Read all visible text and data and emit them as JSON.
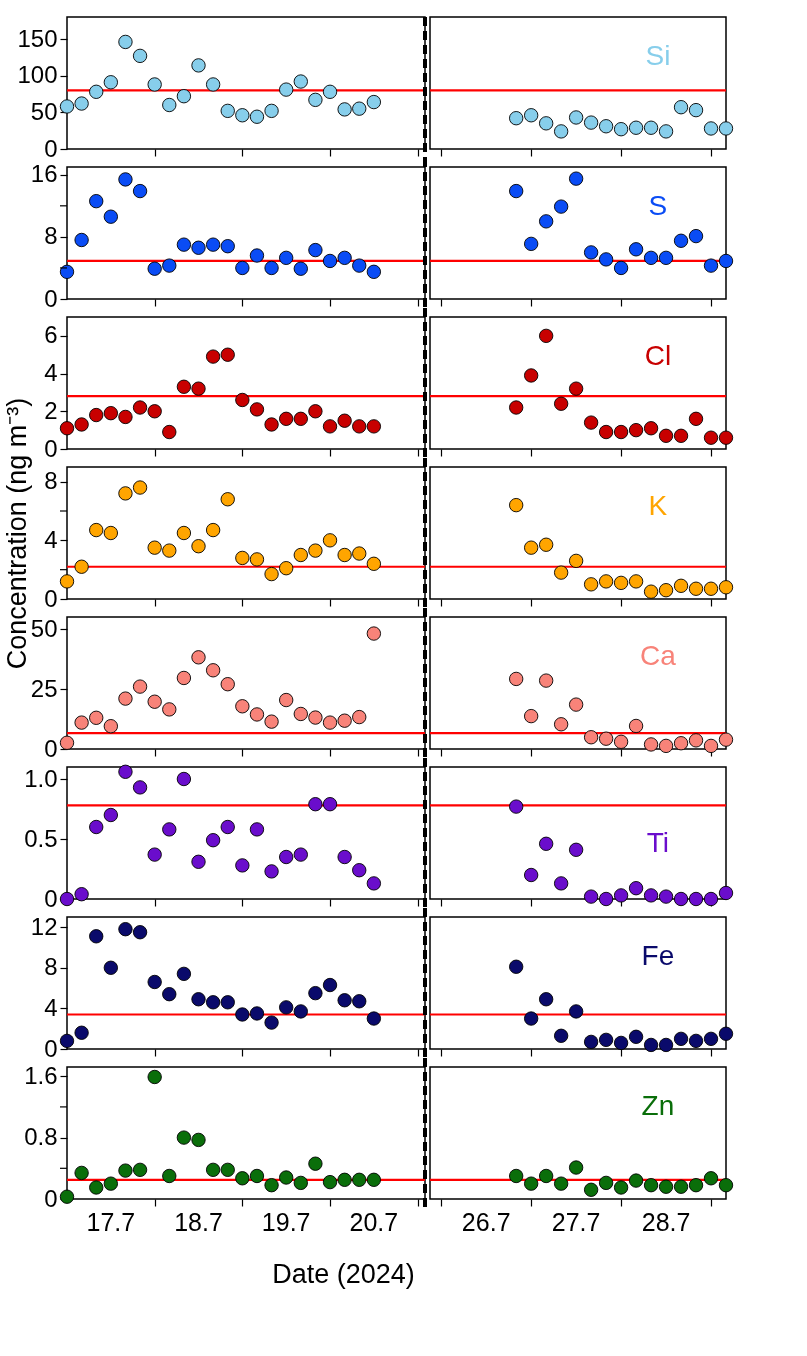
{
  "chart_data": [
    {
      "type": "scatter",
      "x": [
        "2024-07-17T00:00",
        "2024-07-17T04:00",
        "2024-07-17T08:00",
        "2024-07-17T12:00",
        "2024-07-17T16:00",
        "2024-07-17T20:00",
        "2024-07-18T00:00",
        "2024-07-18T04:00",
        "2024-07-18T08:00",
        "2024-07-18T12:00",
        "2024-07-18T16:00",
        "2024-07-18T20:00",
        "2024-07-19T00:00",
        "2024-07-19T04:00",
        "2024-07-19T08:00",
        "2024-07-19T12:00",
        "2024-07-19T16:00",
        "2024-07-19T20:00",
        "2024-07-20T00:00",
        "2024-07-20T04:00",
        "2024-07-20T08:00",
        "2024-07-20T12:00"
      ],
      "xlim": [
        "2024-07-17T00:00",
        "2024-07-21T02:00"
      ],
      "xticks": [
        {
          "value": "2024-07-18T00:00",
          "label": null
        },
        {
          "value": "2024-07-19T00:00",
          "label": null
        },
        {
          "value": "2024-07-20T00:00",
          "label": null
        },
        {
          "value": "2024-07-21T00:00",
          "label": null
        }
      ],
      "ylim": [
        0,
        180
      ],
      "yticks": [
        0,
        50,
        100,
        150
      ],
      "marker": "circle",
      "tick_labels": "y",
      "ref_lines": [
        {
          "axis": "y",
          "value": 80,
          "color": "#ff0000"
        }
      ],
      "series": [
        {
          "color": "#87ceeb",
          "values": [
            58,
            62,
            78,
            91,
            146,
            127,
            88,
            60,
            72,
            114,
            88,
            52,
            46,
            44,
            52,
            81,
            92,
            67,
            78,
            54,
            55,
            64
          ]
        }
      ]
    },
    {
      "type": "scatter",
      "x": [
        "2024-07-26T20:00",
        "2024-07-27T00:00",
        "2024-07-27T04:00",
        "2024-07-27T08:00",
        "2024-07-27T12:00",
        "2024-07-27T16:00",
        "2024-07-27T20:00",
        "2024-07-28T00:00",
        "2024-07-28T04:00",
        "2024-07-28T08:00",
        "2024-07-28T12:00",
        "2024-07-28T16:00",
        "2024-07-28T20:00",
        "2024-07-29T00:00",
        "2024-07-29T04:00"
      ],
      "xlim": [
        "2024-07-25T21:00",
        "2024-07-29T04:00"
      ],
      "xticks": [
        {
          "value": "2024-07-26T00:00",
          "label": null
        },
        {
          "value": "2024-07-27T00:00",
          "label": null
        },
        {
          "value": "2024-07-28T00:00",
          "label": null
        },
        {
          "value": "2024-07-29T00:00",
          "label": null
        }
      ],
      "ylim": [
        0,
        180
      ],
      "marker": "circle",
      "tick_labels": false,
      "ref_lines": [
        {
          "axis": "y",
          "value": 80,
          "color": "#ff0000"
        }
      ],
      "series": [
        {
          "name": "Si",
          "color": "#87ceeb",
          "values": [
            42,
            46,
            35,
            24,
            43,
            36,
            31,
            27,
            29,
            29,
            24,
            57,
            53,
            28,
            28
          ]
        }
      ]
    },
    {
      "type": "scatter",
      "x": [
        "2024-07-17T00:00",
        "2024-07-17T04:00",
        "2024-07-17T08:00",
        "2024-07-17T12:00",
        "2024-07-17T16:00",
        "2024-07-17T20:00",
        "2024-07-18T00:00",
        "2024-07-18T04:00",
        "2024-07-18T08:00",
        "2024-07-18T12:00",
        "2024-07-18T16:00",
        "2024-07-18T20:00",
        "2024-07-19T00:00",
        "2024-07-19T04:00",
        "2024-07-19T08:00",
        "2024-07-19T12:00",
        "2024-07-19T16:00",
        "2024-07-19T20:00",
        "2024-07-20T00:00",
        "2024-07-20T04:00",
        "2024-07-20T08:00",
        "2024-07-20T12:00"
      ],
      "xlim": [
        "2024-07-17T00:00",
        "2024-07-21T02:00"
      ],
      "xticks": [
        {
          "value": "2024-07-18T00:00",
          "label": null
        },
        {
          "value": "2024-07-19T00:00",
          "label": null
        },
        {
          "value": "2024-07-20T00:00",
          "label": null
        },
        {
          "value": "2024-07-21T00:00",
          "label": null
        }
      ],
      "ylim": [
        0,
        17
      ],
      "yticks": [
        0,
        {
          "value": 4,
          "label": null
        },
        8,
        {
          "value": 12,
          "label": null
        },
        16
      ],
      "marker": "circle",
      "tick_labels": "y",
      "ref_lines": [
        {
          "axis": "y",
          "value": 4.9,
          "color": "#ff0000"
        }
      ],
      "series": [
        {
          "color": "#0a4cf5",
          "values": [
            3.5,
            7.6,
            12.6,
            10.6,
            15.4,
            13.9,
            3.9,
            4.3,
            7.0,
            6.6,
            7.0,
            6.8,
            4.0,
            5.6,
            4.0,
            5.3,
            3.9,
            6.3,
            4.9,
            5.3,
            4.3,
            3.5
          ]
        }
      ]
    },
    {
      "type": "scatter",
      "x": [
        "2024-07-26T20:00",
        "2024-07-27T00:00",
        "2024-07-27T04:00",
        "2024-07-27T08:00",
        "2024-07-27T12:00",
        "2024-07-27T16:00",
        "2024-07-27T20:00",
        "2024-07-28T00:00",
        "2024-07-28T04:00",
        "2024-07-28T08:00",
        "2024-07-28T12:00",
        "2024-07-28T16:00",
        "2024-07-28T20:00",
        "2024-07-29T00:00",
        "2024-07-29T04:00"
      ],
      "xlim": [
        "2024-07-25T21:00",
        "2024-07-29T04:00"
      ],
      "xticks": [
        {
          "value": "2024-07-26T00:00",
          "label": null
        },
        {
          "value": "2024-07-27T00:00",
          "label": null
        },
        {
          "value": "2024-07-28T00:00",
          "label": null
        },
        {
          "value": "2024-07-29T00:00",
          "label": null
        }
      ],
      "ylim": [
        0,
        17
      ],
      "marker": "circle",
      "tick_labels": false,
      "ref_lines": [
        {
          "axis": "y",
          "value": 4.9,
          "color": "#ff0000"
        }
      ],
      "series": [
        {
          "name": "S",
          "color": "#0a4cf5",
          "values": [
            13.9,
            7.1,
            10.0,
            11.9,
            15.5,
            6.0,
            5.1,
            4.0,
            6.4,
            5.3,
            5.3,
            7.5,
            8.1,
            4.3,
            4.9
          ]
        }
      ]
    },
    {
      "type": "scatter",
      "x": [
        "2024-07-17T00:00",
        "2024-07-17T04:00",
        "2024-07-17T08:00",
        "2024-07-17T12:00",
        "2024-07-17T16:00",
        "2024-07-17T20:00",
        "2024-07-18T00:00",
        "2024-07-18T04:00",
        "2024-07-18T08:00",
        "2024-07-18T12:00",
        "2024-07-18T16:00",
        "2024-07-18T20:00",
        "2024-07-19T00:00",
        "2024-07-19T04:00",
        "2024-07-19T08:00",
        "2024-07-19T12:00",
        "2024-07-19T16:00",
        "2024-07-19T20:00",
        "2024-07-20T00:00",
        "2024-07-20T04:00",
        "2024-07-20T08:00",
        "2024-07-20T12:00"
      ],
      "xlim": [
        "2024-07-17T00:00",
        "2024-07-21T02:00"
      ],
      "xticks": [
        {
          "value": "2024-07-18T00:00",
          "label": null
        },
        {
          "value": "2024-07-19T00:00",
          "label": null
        },
        {
          "value": "2024-07-20T00:00",
          "label": null
        },
        {
          "value": "2024-07-21T00:00",
          "label": null
        }
      ],
      "ylim": [
        0,
        7
      ],
      "yticks": [
        0,
        2,
        4,
        6
      ],
      "marker": "circle",
      "tick_labels": "y",
      "ref_lines": [
        {
          "axis": "y",
          "value": 2.8,
          "color": "#ff0000"
        }
      ],
      "series": [
        {
          "color": "#c80000",
          "values": [
            1.1,
            1.3,
            1.8,
            1.9,
            1.7,
            2.2,
            2.0,
            0.9,
            3.3,
            3.2,
            4.9,
            5.0,
            2.6,
            2.1,
            1.3,
            1.6,
            1.6,
            2.0,
            1.2,
            1.5,
            1.2,
            1.2
          ]
        }
      ]
    },
    {
      "type": "scatter",
      "x": [
        "2024-07-26T20:00",
        "2024-07-27T00:00",
        "2024-07-27T04:00",
        "2024-07-27T08:00",
        "2024-07-27T12:00",
        "2024-07-27T16:00",
        "2024-07-27T20:00",
        "2024-07-28T00:00",
        "2024-07-28T04:00",
        "2024-07-28T08:00",
        "2024-07-28T12:00",
        "2024-07-28T16:00",
        "2024-07-28T20:00",
        "2024-07-29T00:00",
        "2024-07-29T04:00"
      ],
      "xlim": [
        "2024-07-25T21:00",
        "2024-07-29T04:00"
      ],
      "xticks": [
        {
          "value": "2024-07-26T00:00",
          "label": null
        },
        {
          "value": "2024-07-27T00:00",
          "label": null
        },
        {
          "value": "2024-07-28T00:00",
          "label": null
        },
        {
          "value": "2024-07-29T00:00",
          "label": null
        }
      ],
      "ylim": [
        0,
        7
      ],
      "marker": "circle",
      "tick_labels": false,
      "ref_lines": [
        {
          "axis": "y",
          "value": 2.8,
          "color": "#ff0000"
        }
      ],
      "series": [
        {
          "name": "Cl",
          "color": "#c80000",
          "values": [
            2.2,
            3.9,
            6.0,
            2.4,
            3.2,
            1.4,
            0.9,
            0.9,
            1.0,
            1.1,
            0.7,
            0.7,
            1.6,
            0.6,
            0.6
          ]
        }
      ]
    },
    {
      "type": "scatter",
      "x": [
        "2024-07-17T00:00",
        "2024-07-17T04:00",
        "2024-07-17T08:00",
        "2024-07-17T12:00",
        "2024-07-17T16:00",
        "2024-07-17T20:00",
        "2024-07-18T00:00",
        "2024-07-18T04:00",
        "2024-07-18T08:00",
        "2024-07-18T12:00",
        "2024-07-18T16:00",
        "2024-07-18T20:00",
        "2024-07-19T00:00",
        "2024-07-19T04:00",
        "2024-07-19T08:00",
        "2024-07-19T12:00",
        "2024-07-19T16:00",
        "2024-07-19T20:00",
        "2024-07-20T00:00",
        "2024-07-20T04:00",
        "2024-07-20T08:00",
        "2024-07-20T12:00"
      ],
      "xlim": [
        "2024-07-17T00:00",
        "2024-07-21T02:00"
      ],
      "xticks": [
        {
          "value": "2024-07-18T00:00",
          "label": null
        },
        {
          "value": "2024-07-19T00:00",
          "label": null
        },
        {
          "value": "2024-07-20T00:00",
          "label": null
        },
        {
          "value": "2024-07-21T00:00",
          "label": null
        }
      ],
      "ylim": [
        0,
        9
      ],
      "yticks": [
        0,
        {
          "value": 2,
          "label": null
        },
        4,
        {
          "value": 6,
          "label": null
        },
        8
      ],
      "marker": "circle",
      "tick_labels": "y",
      "ylabel": "Concentration (ng m⁻³)",
      "ref_lines": [
        {
          "axis": "y",
          "value": 2.2,
          "color": "#ff0000"
        }
      ],
      "series": [
        {
          "color": "#ffa500",
          "values": [
            1.2,
            2.2,
            4.7,
            4.5,
            7.2,
            7.6,
            3.5,
            3.3,
            4.5,
            3.6,
            4.7,
            6.8,
            2.8,
            2.7,
            1.7,
            2.1,
            3.0,
            3.3,
            4.0,
            3.0,
            3.1,
            2.4
          ]
        }
      ]
    },
    {
      "type": "scatter",
      "x": [
        "2024-07-26T20:00",
        "2024-07-27T00:00",
        "2024-07-27T04:00",
        "2024-07-27T08:00",
        "2024-07-27T12:00",
        "2024-07-27T16:00",
        "2024-07-27T20:00",
        "2024-07-28T00:00",
        "2024-07-28T04:00",
        "2024-07-28T08:00",
        "2024-07-28T12:00",
        "2024-07-28T16:00",
        "2024-07-28T20:00",
        "2024-07-29T00:00",
        "2024-07-29T04:00"
      ],
      "xlim": [
        "2024-07-25T21:00",
        "2024-07-29T04:00"
      ],
      "xticks": [
        {
          "value": "2024-07-26T00:00",
          "label": null
        },
        {
          "value": "2024-07-27T00:00",
          "label": null
        },
        {
          "value": "2024-07-28T00:00",
          "label": null
        },
        {
          "value": "2024-07-29T00:00",
          "label": null
        }
      ],
      "ylim": [
        0,
        9
      ],
      "marker": "circle",
      "tick_labels": false,
      "ref_lines": [
        {
          "axis": "y",
          "value": 2.2,
          "color": "#ff0000"
        }
      ],
      "series": [
        {
          "name": "K",
          "color": "#ffa500",
          "values": [
            6.4,
            3.5,
            3.7,
            1.8,
            2.6,
            1.0,
            1.2,
            1.1,
            1.2,
            0.5,
            0.6,
            0.9,
            0.7,
            0.7,
            0.8
          ]
        }
      ]
    },
    {
      "type": "scatter",
      "x": [
        "2024-07-17T00:00",
        "2024-07-17T04:00",
        "2024-07-17T08:00",
        "2024-07-17T12:00",
        "2024-07-17T16:00",
        "2024-07-17T20:00",
        "2024-07-18T00:00",
        "2024-07-18T04:00",
        "2024-07-18T08:00",
        "2024-07-18T12:00",
        "2024-07-18T16:00",
        "2024-07-18T20:00",
        "2024-07-19T00:00",
        "2024-07-19T04:00",
        "2024-07-19T08:00",
        "2024-07-19T12:00",
        "2024-07-19T16:00",
        "2024-07-19T20:00",
        "2024-07-20T00:00",
        "2024-07-20T04:00",
        "2024-07-20T08:00",
        "2024-07-20T12:00"
      ],
      "xlim": [
        "2024-07-17T00:00",
        "2024-07-21T02:00"
      ],
      "xticks": [
        {
          "value": "2024-07-18T00:00",
          "label": null
        },
        {
          "value": "2024-07-19T00:00",
          "label": null
        },
        {
          "value": "2024-07-20T00:00",
          "label": null
        },
        {
          "value": "2024-07-21T00:00",
          "label": null
        }
      ],
      "ylim": [
        0,
        55
      ],
      "yticks": [
        0,
        25,
        50
      ],
      "marker": "circle",
      "tick_labels": "y",
      "ref_lines": [
        {
          "axis": "y",
          "value": 6.6,
          "color": "#ff0000"
        }
      ],
      "series": [
        {
          "color": "#f88379",
          "values": [
            2.6,
            11,
            13,
            9.5,
            21,
            26,
            19.7,
            16.5,
            29.6,
            38.2,
            32.8,
            27,
            17.8,
            14.4,
            11.4,
            20.4,
            14.6,
            13.1,
            11,
            11.8,
            13.3,
            48.1
          ]
        }
      ]
    },
    {
      "type": "scatter",
      "x": [
        "2024-07-26T20:00",
        "2024-07-27T00:00",
        "2024-07-27T04:00",
        "2024-07-27T08:00",
        "2024-07-27T12:00",
        "2024-07-27T16:00",
        "2024-07-27T20:00",
        "2024-07-28T00:00",
        "2024-07-28T04:00",
        "2024-07-28T08:00",
        "2024-07-28T12:00",
        "2024-07-28T16:00",
        "2024-07-28T20:00",
        "2024-07-29T00:00",
        "2024-07-29T04:00"
      ],
      "xlim": [
        "2024-07-25T21:00",
        "2024-07-29T04:00"
      ],
      "xticks": [
        {
          "value": "2024-07-26T00:00",
          "label": null
        },
        {
          "value": "2024-07-27T00:00",
          "label": null
        },
        {
          "value": "2024-07-28T00:00",
          "label": null
        },
        {
          "value": "2024-07-29T00:00",
          "label": null
        }
      ],
      "ylim": [
        0,
        55
      ],
      "marker": "circle",
      "tick_labels": false,
      "ref_lines": [
        {
          "axis": "y",
          "value": 6.6,
          "color": "#ff0000"
        }
      ],
      "series": [
        {
          "name": "Ca",
          "color": "#f88379",
          "values": [
            29.2,
            13.7,
            28.5,
            10.3,
            18.5,
            4.9,
            4.3,
            3.0,
            9.6,
            1.9,
            1.3,
            2.4,
            3.6,
            1.3,
            3.9
          ]
        }
      ]
    },
    {
      "type": "scatter",
      "x": [
        "2024-07-17T00:00",
        "2024-07-17T04:00",
        "2024-07-17T08:00",
        "2024-07-17T12:00",
        "2024-07-17T16:00",
        "2024-07-17T20:00",
        "2024-07-18T00:00",
        "2024-07-18T04:00",
        "2024-07-18T08:00",
        "2024-07-18T12:00",
        "2024-07-18T16:00",
        "2024-07-18T20:00",
        "2024-07-19T00:00",
        "2024-07-19T04:00",
        "2024-07-19T08:00",
        "2024-07-19T12:00",
        "2024-07-19T16:00",
        "2024-07-19T20:00",
        "2024-07-20T00:00",
        "2024-07-20T04:00",
        "2024-07-20T08:00",
        "2024-07-20T12:00"
      ],
      "xlim": [
        "2024-07-17T00:00",
        "2024-07-21T02:00"
      ],
      "xticks": [
        {
          "value": "2024-07-18T00:00",
          "label": null
        },
        {
          "value": "2024-07-19T00:00",
          "label": null
        },
        {
          "value": "2024-07-20T00:00",
          "label": null
        },
        {
          "value": "2024-07-21T00:00",
          "label": null
        }
      ],
      "ylim": [
        0,
        1.1
      ],
      "yticks": [
        {
          "value": 0,
          "label": "0"
        },
        {
          "value": 0.5,
          "label": "0.5"
        },
        {
          "value": 1,
          "label": "1.0"
        }
      ],
      "marker": "circle",
      "tick_labels": "y",
      "ref_lines": [
        {
          "axis": "y",
          "value": 0.78,
          "color": "#ff0000"
        }
      ],
      "series": [
        {
          "color": "#6a0dcc",
          "values": [
            0,
            0.04,
            0.6,
            0.7,
            1.06,
            0.93,
            0.37,
            0.58,
            1.0,
            0.31,
            0.49,
            0.6,
            0.28,
            0.58,
            0.23,
            0.35,
            0.37,
            0.79,
            0.79,
            0.35,
            0.24,
            0.13
          ]
        }
      ]
    },
    {
      "type": "scatter",
      "x": [
        "2024-07-26T20:00",
        "2024-07-27T00:00",
        "2024-07-27T04:00",
        "2024-07-27T08:00",
        "2024-07-27T12:00",
        "2024-07-27T16:00",
        "2024-07-27T20:00",
        "2024-07-28T00:00",
        "2024-07-28T04:00",
        "2024-07-28T08:00",
        "2024-07-28T12:00",
        "2024-07-28T16:00",
        "2024-07-28T20:00",
        "2024-07-29T00:00",
        "2024-07-29T04:00"
      ],
      "xlim": [
        "2024-07-25T21:00",
        "2024-07-29T04:00"
      ],
      "xticks": [
        {
          "value": "2024-07-26T00:00",
          "label": null
        },
        {
          "value": "2024-07-27T00:00",
          "label": null
        },
        {
          "value": "2024-07-28T00:00",
          "label": null
        },
        {
          "value": "2024-07-29T00:00",
          "label": null
        }
      ],
      "ylim": [
        0,
        1.1
      ],
      "marker": "circle",
      "tick_labels": false,
      "ref_lines": [
        {
          "axis": "y",
          "value": 0.78,
          "color": "#ff0000"
        }
      ],
      "series": [
        {
          "name": "Ti",
          "color": "#6a0dcc",
          "values": [
            0.77,
            0.2,
            0.46,
            0.13,
            0.41,
            0.02,
            0,
            0.03,
            0.09,
            0.03,
            0.02,
            0,
            0,
            0,
            0.05
          ]
        }
      ]
    },
    {
      "type": "scatter",
      "x": [
        "2024-07-17T00:00",
        "2024-07-17T04:00",
        "2024-07-17T08:00",
        "2024-07-17T12:00",
        "2024-07-17T16:00",
        "2024-07-17T20:00",
        "2024-07-18T00:00",
        "2024-07-18T04:00",
        "2024-07-18T08:00",
        "2024-07-18T12:00",
        "2024-07-18T16:00",
        "2024-07-18T20:00",
        "2024-07-19T00:00",
        "2024-07-19T04:00",
        "2024-07-19T08:00",
        "2024-07-19T12:00",
        "2024-07-19T16:00",
        "2024-07-19T20:00",
        "2024-07-20T00:00",
        "2024-07-20T04:00",
        "2024-07-20T08:00",
        "2024-07-20T12:00"
      ],
      "xlim": [
        "2024-07-17T00:00",
        "2024-07-21T02:00"
      ],
      "xticks": [
        {
          "value": "2024-07-18T00:00",
          "label": null
        },
        {
          "value": "2024-07-19T00:00",
          "label": null
        },
        {
          "value": "2024-07-20T00:00",
          "label": null
        },
        {
          "value": "2024-07-21T00:00",
          "label": null
        }
      ],
      "ylim": [
        0,
        13
      ],
      "yticks": [
        0,
        4,
        8,
        12
      ],
      "marker": "circle",
      "tick_labels": "y",
      "ref_lines": [
        {
          "axis": "y",
          "value": 3.4,
          "color": "#ff0000"
        }
      ],
      "series": [
        {
          "color": "#0a0a6b",
          "values": [
            0.8,
            1.6,
            11.1,
            8.0,
            11.8,
            11.5,
            6.6,
            5.4,
            7.4,
            4.9,
            4.6,
            4.6,
            3.4,
            3.5,
            2.6,
            4.1,
            3.7,
            5.5,
            6.3,
            4.8,
            4.7,
            3.0
          ]
        }
      ]
    },
    {
      "type": "scatter",
      "x": [
        "2024-07-26T20:00",
        "2024-07-27T00:00",
        "2024-07-27T04:00",
        "2024-07-27T08:00",
        "2024-07-27T12:00",
        "2024-07-27T16:00",
        "2024-07-27T20:00",
        "2024-07-28T00:00",
        "2024-07-28T04:00",
        "2024-07-28T08:00",
        "2024-07-28T12:00",
        "2024-07-28T16:00",
        "2024-07-28T20:00",
        "2024-07-29T00:00",
        "2024-07-29T04:00"
      ],
      "xlim": [
        "2024-07-25T21:00",
        "2024-07-29T04:00"
      ],
      "xticks": [
        {
          "value": "2024-07-26T00:00",
          "label": null
        },
        {
          "value": "2024-07-27T00:00",
          "label": null
        },
        {
          "value": "2024-07-28T00:00",
          "label": null
        },
        {
          "value": "2024-07-29T00:00",
          "label": null
        }
      ],
      "ylim": [
        0,
        13
      ],
      "marker": "circle",
      "tick_labels": false,
      "ref_lines": [
        {
          "axis": "y",
          "value": 3.4,
          "color": "#ff0000"
        }
      ],
      "series": [
        {
          "name": "Fe",
          "color": "#0a0a6b",
          "values": [
            8.1,
            3.0,
            4.9,
            1.3,
            3.7,
            0.7,
            0.9,
            0.6,
            1.2,
            0.4,
            0.4,
            1.0,
            0.8,
            1.0,
            1.5
          ]
        }
      ]
    },
    {
      "type": "scatter",
      "xlabel": "Date (2024)",
      "x": [
        "2024-07-17T00:00",
        "2024-07-17T04:00",
        "2024-07-17T08:00",
        "2024-07-17T12:00",
        "2024-07-17T16:00",
        "2024-07-17T20:00",
        "2024-07-18T00:00",
        "2024-07-18T04:00",
        "2024-07-18T08:00",
        "2024-07-18T12:00",
        "2024-07-18T16:00",
        "2024-07-18T20:00",
        "2024-07-19T00:00",
        "2024-07-19T04:00",
        "2024-07-19T08:00",
        "2024-07-19T12:00",
        "2024-07-19T16:00",
        "2024-07-19T20:00",
        "2024-07-20T00:00",
        "2024-07-20T04:00",
        "2024-07-20T08:00",
        "2024-07-20T12:00"
      ],
      "xlim": [
        "2024-07-17T00:00",
        "2024-07-21T02:00"
      ],
      "xticks": [
        {
          "value": "2024-07-17T12:00",
          "label": "17.7"
        },
        {
          "value": "2024-07-18T00:00",
          "label": null
        },
        {
          "value": "2024-07-18T12:00",
          "label": "18.7"
        },
        {
          "value": "2024-07-19T00:00",
          "label": null
        },
        {
          "value": "2024-07-19T12:00",
          "label": "19.7"
        },
        {
          "value": "2024-07-20T00:00",
          "label": null
        },
        {
          "value": "2024-07-20T12:00",
          "label": "20.7"
        },
        {
          "value": "2024-07-21T00:00",
          "label": null
        }
      ],
      "ylim": [
        0,
        1.72
      ],
      "yticks": [
        0,
        {
          "value": 0.4,
          "label": null
        },
        0.8,
        {
          "value": 1.2,
          "label": null
        },
        1.6
      ],
      "marker": "circle",
      "ref_lines": [
        {
          "axis": "y",
          "value": 0.25,
          "color": "#ff0000"
        }
      ],
      "series": [
        {
          "color": "#0a6e0a",
          "values": [
            0.03,
            0.34,
            0.15,
            0.2,
            0.37,
            0.38,
            1.59,
            0.3,
            0.8,
            0.77,
            0.38,
            0.38,
            0.27,
            0.3,
            0.18,
            0.28,
            0.21,
            0.46,
            0.22,
            0.25,
            0.25,
            0.25
          ]
        }
      ]
    },
    {
      "type": "scatter",
      "x": [
        "2024-07-26T20:00",
        "2024-07-27T00:00",
        "2024-07-27T04:00",
        "2024-07-27T08:00",
        "2024-07-27T12:00",
        "2024-07-27T16:00",
        "2024-07-27T20:00",
        "2024-07-28T00:00",
        "2024-07-28T04:00",
        "2024-07-28T08:00",
        "2024-07-28T12:00",
        "2024-07-28T16:00",
        "2024-07-28T20:00",
        "2024-07-29T00:00",
        "2024-07-29T04:00"
      ],
      "xlim": [
        "2024-07-25T21:00",
        "2024-07-29T04:00"
      ],
      "xticks": [
        {
          "value": "2024-07-26T00:00",
          "label": null
        },
        {
          "value": "2024-07-26T12:00",
          "label": "26.7"
        },
        {
          "value": "2024-07-27T00:00",
          "label": null
        },
        {
          "value": "2024-07-27T12:00",
          "label": "27.7"
        },
        {
          "value": "2024-07-28T00:00",
          "label": null
        },
        {
          "value": "2024-07-28T12:00",
          "label": "28.7"
        },
        {
          "value": "2024-07-29T00:00",
          "label": null
        }
      ],
      "ylim": [
        0,
        1.72
      ],
      "marker": "circle",
      "tick_labels": "x",
      "ref_lines": [
        {
          "axis": "y",
          "value": 0.25,
          "color": "#ff0000"
        }
      ],
      "series": [
        {
          "name": "Zn",
          "color": "#0a6e0a",
          "values": [
            0.3,
            0.2,
            0.3,
            0.2,
            0.41,
            0.12,
            0.21,
            0.15,
            0.24,
            0.18,
            0.16,
            0.16,
            0.18,
            0.27,
            0.18
          ]
        }
      ]
    }
  ]
}
